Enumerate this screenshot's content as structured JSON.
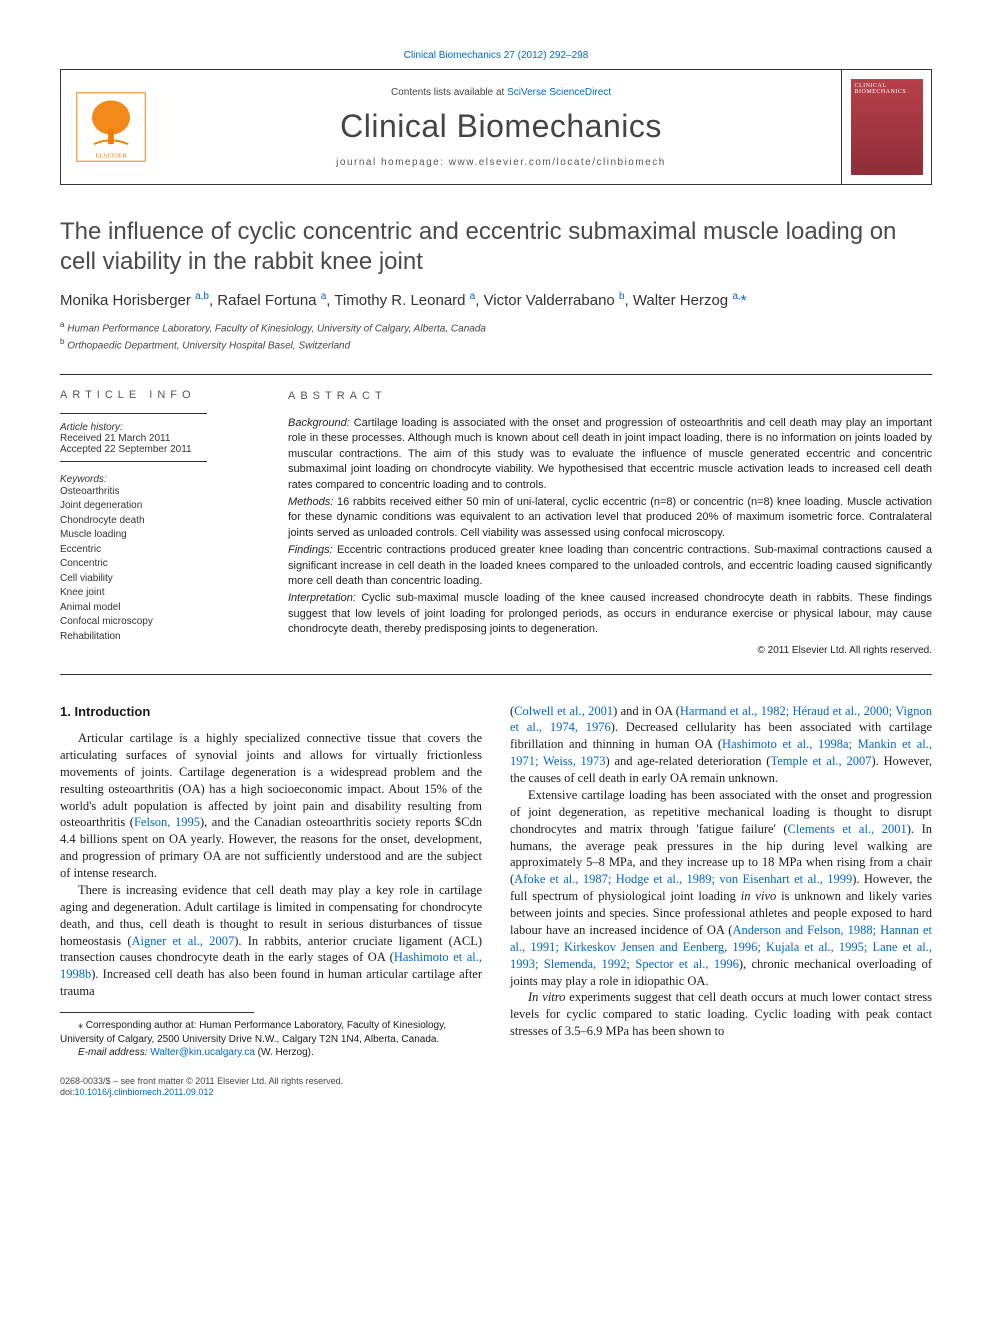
{
  "top_link": "Clinical Biomechanics 27 (2012) 292–298",
  "header": {
    "contents_prefix": "Contents lists available at ",
    "contents_link": "SciVerse ScienceDirect",
    "journal": "Clinical Biomechanics",
    "homepage_prefix": "journal homepage: ",
    "homepage": "www.elsevier.com/locate/clinbiomech",
    "cover_label": "CLINICAL BIOMECHANICS"
  },
  "title": "The influence of cyclic concentric and eccentric submaximal muscle loading on cell viability in the rabbit knee joint",
  "authors_html": "Monika Horisberger <sup>a,b</sup>, Rafael Fortuna <sup>a</sup>, Timothy R. Leonard <sup>a</sup>, Victor Valderrabano <sup>b</sup>, Walter Herzog <sup>a,</sup><span class='asterisk'>*</span>",
  "affiliations": [
    "a Human Performance Laboratory, Faculty of Kinesiology, University of Calgary, Alberta, Canada",
    "b Orthopaedic Department, University Hospital Basel, Switzerland"
  ],
  "article_info": {
    "head": "ARTICLE INFO",
    "history_label": "Article history:",
    "received": "Received 21 March 2011",
    "accepted": "Accepted 22 September 2011",
    "keywords_label": "Keywords:",
    "keywords": [
      "Osteoarthritis",
      "Joint degeneration",
      "Chondrocyte death",
      "Muscle loading",
      "Eccentric",
      "Concentric",
      "Cell viability",
      "Knee joint",
      "Animal model",
      "Confocal microscopy",
      "Rehabilitation"
    ]
  },
  "abstract": {
    "head": "ABSTRACT",
    "background_label": "Background:",
    "background": "Cartilage loading is associated with the onset and progression of osteoarthritis and cell death may play an important role in these processes. Although much is known about cell death in joint impact loading, there is no information on joints loaded by muscular contractions. The aim of this study was to evaluate the influence of muscle generated eccentric and concentric submaximal joint loading on chondrocyte viability. We hypothesised that eccentric muscle activation leads to increased cell death rates compared to concentric loading and to controls.",
    "methods_label": "Methods:",
    "methods": "16 rabbits received either 50 min of uni-lateral, cyclic eccentric (n=8) or concentric (n=8) knee loading. Muscle activation for these dynamic conditions was equivalent to an activation level that produced 20% of maximum isometric force. Contralateral joints served as unloaded controls. Cell viability was assessed using confocal microscopy.",
    "findings_label": "Findings:",
    "findings": "Eccentric contractions produced greater knee loading than concentric contractions. Sub-maximal contractions caused a significant increase in cell death in the loaded knees compared to the unloaded controls, and eccentric loading caused significantly more cell death than concentric loading.",
    "interpretation_label": "Interpretation:",
    "interpretation": "Cyclic sub-maximal muscle loading of the knee caused increased chondrocyte death in rabbits. These findings suggest that low levels of joint loading for prolonged periods, as occurs in endurance exercise or physical labour, may cause chondrocyte death, thereby predisposing joints to degeneration.",
    "copyright": "© 2011 Elsevier Ltd. All rights reserved."
  },
  "body": {
    "intro_head": "1. Introduction",
    "col1_p1": "Articular cartilage is a highly specialized connective tissue that covers the articulating surfaces of synovial joints and allows for virtually frictionless movements of joints. Cartilage degeneration is a widespread problem and the resulting osteoarthritis (OA) has a high socioeconomic impact. About 15% of the world's adult population is affected by joint pain and disability resulting from osteoarthritis (",
    "col1_p1_link1": "Felson, 1995",
    "col1_p1_b": "), and the Canadian osteoarthritis society reports $Cdn 4.4 billions spent on OA yearly. However, the reasons for the onset, development, and progression of primary OA are not sufficiently understood and are the subject of intense research.",
    "col1_p2a": "There is increasing evidence that cell death may play a key role in cartilage aging and degeneration. Adult cartilage is limited in compensating for chondrocyte death, and thus, cell death is thought to result in serious disturbances of tissue homeostasis (",
    "col1_p2_link1": "Aigner et al., 2007",
    "col1_p2b": "). In rabbits, anterior cruciate ligament (ACL) transection causes chondrocyte death in the early stages of OA (",
    "col1_p2_link2": "Hashimoto et al., 1998b",
    "col1_p2c": "). Increased cell death has also been found in human articular cartilage after trauma",
    "col2_p1a": "(",
    "col2_p1_link1": "Colwell et al., 2001",
    "col2_p1b": ") and in OA (",
    "col2_p1_link2": "Harmand et al., 1982; Héraud et al., 2000; Vignon et al., 1974, 1976",
    "col2_p1c": "). Decreased cellularity has been associated with cartilage fibrillation and thinning in human OA (",
    "col2_p1_link3": "Hashimoto et al., 1998a; Mankin et al., 1971; Weiss, 1973",
    "col2_p1d": ") and age-related deterioration (",
    "col2_p1_link4": "Temple et al., 2007",
    "col2_p1e": "). However, the causes of cell death in early OA remain unknown.",
    "col2_p2a": "Extensive cartilage loading has been associated with the onset and progression of joint degeneration, as repetitive mechanical loading is thought to disrupt chondrocytes and matrix through 'fatigue failure' (",
    "col2_p2_link1": "Clements et al., 2001",
    "col2_p2b": "). In humans, the average peak pressures in the hip during level walking are approximately 5–8 MPa, and they increase up to 18 MPa when rising from a chair (",
    "col2_p2_link2": "Afoke et al., 1987; Hodge et al., 1989; von Eisenhart et al., 1999",
    "col2_p2c": "). However, the full spectrum of physiological joint loading ",
    "col2_p2_invivo": "in vivo",
    "col2_p2d": " is unknown and likely varies between joints and species. Since professional athletes and people exposed to hard labour have an increased incidence of OA (",
    "col2_p2_link3": "Anderson and Felson, 1988; Hannan et al., 1991; Kirkeskov Jensen and Eenberg, 1996; Kujala et al., 1995; Lane et al., 1993; Slemenda, 1992; Spector et al., 1996",
    "col2_p2e": "), chronic mechanical overloading of joints may play a role in idiopathic OA.",
    "col2_p3_invitro": "In vitro",
    "col2_p3a": " experiments suggest that cell death occurs at much lower contact stress levels for cyclic compared to static loading. Cyclic loading with peak contact stresses of 3.5–6.9 MPa has been shown to"
  },
  "footnote": {
    "corr_label": "⁎ Corresponding author at: ",
    "corr_text": "Human Performance Laboratory, Faculty of Kinesiology, University of Calgary, 2500 University Drive N.W., Calgary T2N 1N4, Alberta, Canada.",
    "email_label": "E-mail address: ",
    "email": "Walter@kin.ucalgary.ca",
    "email_suffix": " (W. Herzog)."
  },
  "bottom": {
    "line1": "0268-0033/$ – see front matter © 2011 Elsevier Ltd. All rights reserved.",
    "line2": "doi:",
    "doi": "10.1016/j.clinbiomech.2011.09.012"
  },
  "colors": {
    "link": "#0066cc",
    "text": "#1a1a1a",
    "rule": "#333333",
    "elsevier_orange": "#ef7d00",
    "cover_red": "#a8343d"
  }
}
